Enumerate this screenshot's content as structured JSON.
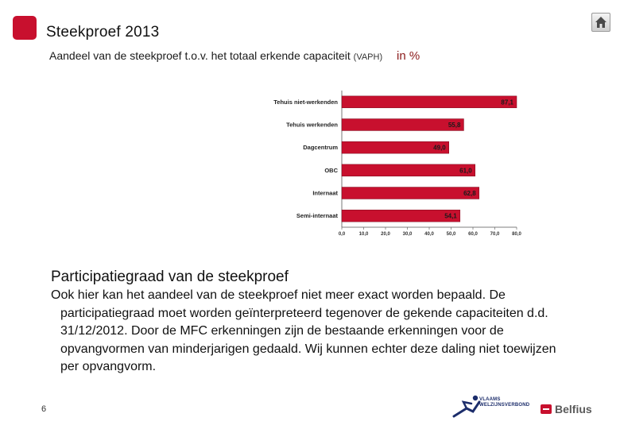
{
  "header": {
    "title": "Steekproef  2013",
    "subtitle_main": "Aandeel van de steekproef t.o.v. het totaal erkende capaciteit",
    "subtitle_small": "(VAPH)",
    "subtitle_unit": "in %"
  },
  "chart_data": {
    "type": "bar",
    "orientation": "horizontal",
    "categories": [
      "Tehuis niet-werkenden",
      "Tehuis werkenden",
      "Dagcentrum",
      "OBC",
      "Internaat",
      "Semi-internaat"
    ],
    "values": [
      87.1,
      55.8,
      49.0,
      61.0,
      62.8,
      54.1
    ],
    "value_labels": [
      "87,1",
      "55,8",
      "49,0",
      "61,0",
      "62,8",
      "54,1"
    ],
    "xlim": [
      0,
      80
    ],
    "x_ticks": [
      "0,0",
      "10,0",
      "20,0",
      "30,0",
      "40,0",
      "50,0",
      "60,0",
      "70,0",
      "80,0"
    ],
    "bar_color": "#c8102e",
    "grid": false
  },
  "section": {
    "title": "Participatiegraad van de steekproef",
    "paragraph": "Ook hier kan het aandeel van de steekproef niet meer exact worden bepaald. De participatiegraad moet worden geïnterpreteerd tegenover de gekende capaciteiten d.d. 31/12/2012.  Door de MFC erkenningen zijn de bestaande erkenningen voor de opvangvormen van minderjarigen gedaald. Wij kunnen echter deze daling niet toewijzen per opvangvorm."
  },
  "footer": {
    "page_number": "6",
    "vlaams_line1": "VLAAMS",
    "vlaams_line2": "WELZIJNSVERBOND",
    "belfius": "Belfius"
  },
  "icons": {
    "home": "home-icon",
    "brand_square": "brand-square-icon"
  },
  "colors": {
    "brand_red": "#c8102e",
    "unit_color": "#8b1a1a"
  }
}
